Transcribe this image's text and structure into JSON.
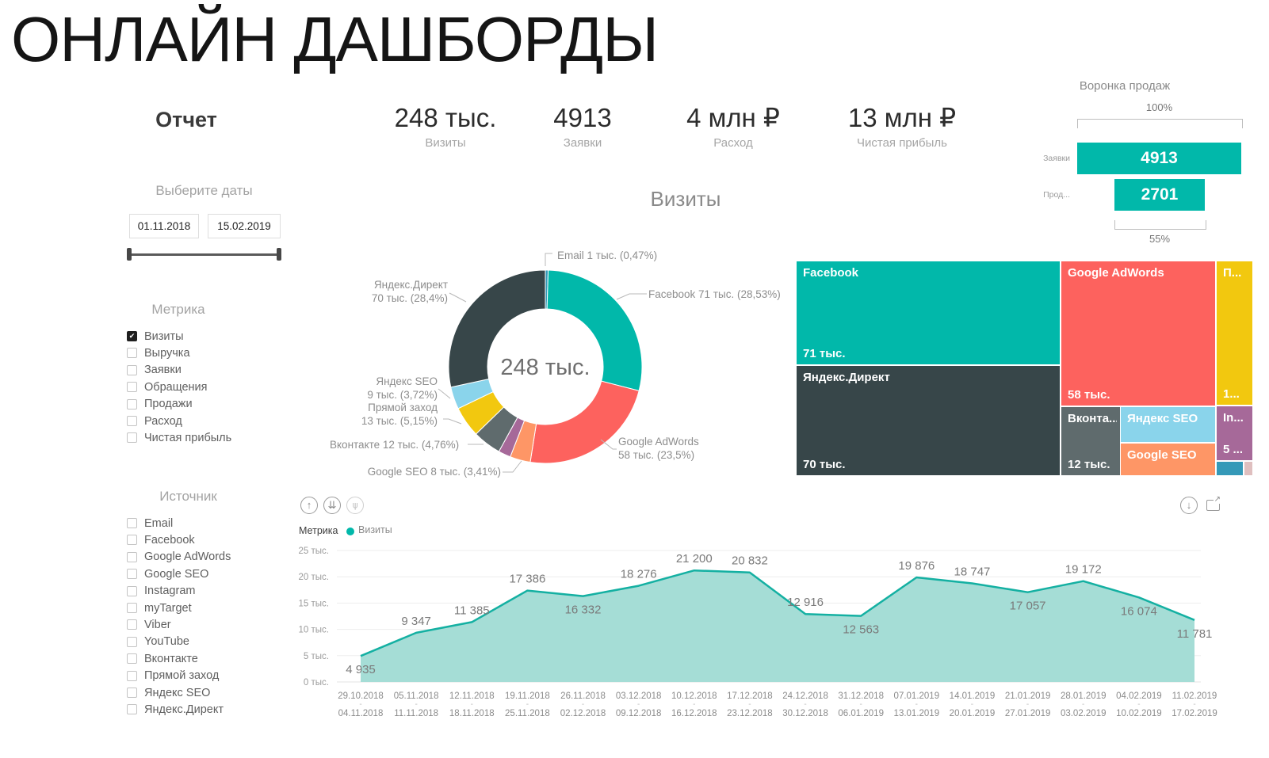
{
  "title": "ОНЛАЙН ДАШБОРДЫ",
  "report": {
    "title": "Отчет"
  },
  "kpis": [
    {
      "value": "248 тыс.",
      "label": "Визиты"
    },
    {
      "value": "4913",
      "label": "Заявки"
    },
    {
      "value": "4 млн ₽",
      "label": "Расход"
    },
    {
      "value": "13 млн ₽",
      "label": "Чистая прибыль"
    }
  ],
  "filters": {
    "dates": {
      "label": "Выберите даты",
      "start": "01.11.2018",
      "end": "15.02.2019"
    },
    "metrics": {
      "label": "Метрика",
      "items": [
        {
          "label": "Визиты",
          "checked": true
        },
        {
          "label": "Выручка",
          "checked": false
        },
        {
          "label": "Заявки",
          "checked": false
        },
        {
          "label": "Обращения",
          "checked": false
        },
        {
          "label": "Продажи",
          "checked": false
        },
        {
          "label": "Расход",
          "checked": false
        },
        {
          "label": "Чистая прибыль",
          "checked": false
        }
      ]
    },
    "sources": {
      "label": "Источник",
      "items": [
        {
          "label": "Email",
          "checked": false
        },
        {
          "label": "Facebook",
          "checked": false
        },
        {
          "label": "Google AdWords",
          "checked": false
        },
        {
          "label": "Google SEO",
          "checked": false
        },
        {
          "label": "Instagram",
          "checked": false
        },
        {
          "label": "myTarget",
          "checked": false
        },
        {
          "label": "Viber",
          "checked": false
        },
        {
          "label": "YouTube",
          "checked": false
        },
        {
          "label": "Вконтакте",
          "checked": false
        },
        {
          "label": "Прямой заход",
          "checked": false
        },
        {
          "label": "Яндекс SEO",
          "checked": false
        },
        {
          "label": "Яндекс.Директ",
          "checked": false
        }
      ]
    }
  },
  "funnel": {
    "title": "Воронка продаж",
    "top_label": "100%",
    "bottom_label": "55%",
    "stages": [
      {
        "label": "Заявки",
        "value": "4913"
      },
      {
        "label": "Прод...",
        "value": "2701"
      }
    ]
  },
  "line_header": {
    "legend_title": "Метрика",
    "series": "Визиты"
  },
  "icons": {
    "drill_up": "↑",
    "drill_down_double": "⇊",
    "expand_all": "⋔",
    "drill_down": "↓",
    "focus": "↗",
    "check": "✔",
    "axis_dash": "-"
  },
  "colors": {
    "accent": "#01B8AA",
    "dark": "#374649",
    "red": "#FD625E",
    "yellow": "#F2C80F",
    "gray": "#5F6B6D",
    "lightblue": "#8AD4EB",
    "orange": "#FE9666",
    "purple": "#A66999",
    "blue": "#3599B8",
    "pink": "#DFBFBF"
  },
  "chart_data": [
    {
      "id": "sales-funnel",
      "type": "bar",
      "title": "Воронка продаж",
      "categories": [
        "Заявки",
        "Прод..."
      ],
      "values": [
        4913,
        2701
      ],
      "annotations": [
        "100%",
        "55%"
      ],
      "legend_position": "none"
    },
    {
      "id": "visits-donut",
      "type": "pie",
      "title": "Визиты",
      "center_label": "248 тыс.",
      "slices": [
        {
          "label": "Email",
          "percent": 0.47,
          "color": "#3599B8",
          "callout": [
            "Email 1 тыс. (0,47%)"
          ]
        },
        {
          "label": "Facebook",
          "percent": 28.53,
          "color": "#01B8AA",
          "callout": [
            "Facebook 71 тыс. (28,53%)"
          ]
        },
        {
          "label": "Google AdWords",
          "percent": 23.5,
          "color": "#FD625E",
          "callout": [
            "Google AdWords",
            "58 тыс. (23,5%)"
          ]
        },
        {
          "label": "Google SEO",
          "percent": 3.41,
          "color": "#FE9666",
          "callout": [
            "Google SEO 8 тыс. (3,41%)"
          ]
        },
        {
          "label": "Instagram",
          "percent": 2.06,
          "color": "#A66999",
          "callout": []
        },
        {
          "label": "Вконтакте",
          "percent": 4.76,
          "color": "#5F6B6D",
          "callout": [
            "Вконтакте 12 тыс. (4,76%)"
          ]
        },
        {
          "label": "Прямой заход",
          "percent": 5.15,
          "color": "#F2C80F",
          "callout": [
            "Прямой заход",
            "13 тыс. (5,15%)"
          ]
        },
        {
          "label": "Яндекс SEO",
          "percent": 3.72,
          "color": "#8AD4EB",
          "callout": [
            "Яндекс SEO",
            "9 тыс. (3,72%)"
          ]
        },
        {
          "label": "Яндекс.Директ",
          "percent": 28.4,
          "color": "#374649",
          "callout": [
            "Яндекс.Директ",
            "70 тыс. (28,4%)"
          ]
        }
      ]
    },
    {
      "id": "sources-treemap",
      "type": "heatmap",
      "subtype": "treemap",
      "cells": [
        {
          "label": "Facebook",
          "value": "71 тыс.",
          "color": "#01B8AA"
        },
        {
          "label": "Яндекс.Директ",
          "value": "70 тыс.",
          "color": "#374649"
        },
        {
          "label": "Google AdWords",
          "value": "58 тыс.",
          "color": "#FD625E"
        },
        {
          "label": "Вконта...",
          "value": "12 тыс.",
          "color": "#5F6B6D"
        },
        {
          "label": "Яндекс SEO",
          "value": "",
          "color": "#8AD4EB"
        },
        {
          "label": "Google SEO",
          "value": "",
          "color": "#FE9666"
        },
        {
          "label": "П...",
          "value": "1...",
          "color": "#F2C80F"
        },
        {
          "label": "In...",
          "value": "5 ...",
          "color": "#A66999"
        },
        {
          "label": "",
          "value": "",
          "color": "#3599B8"
        },
        {
          "label": "",
          "value": "",
          "color": "#DFBFBF"
        }
      ]
    },
    {
      "id": "visits-weekly",
      "type": "area",
      "legend": "Визиты",
      "ylabel": "",
      "ylim": [
        0,
        25000
      ],
      "grid": true,
      "y_ticks": [
        "0 тыс.",
        "5 тыс.",
        "10 тыс.",
        "15 тыс.",
        "20 тыс.",
        "25 тыс."
      ],
      "weeks": [
        {
          "start": "29.10.2018",
          "end": "04.11.2018"
        },
        {
          "start": "05.11.2018",
          "end": "11.11.2018"
        },
        {
          "start": "12.11.2018",
          "end": "18.11.2018"
        },
        {
          "start": "19.11.2018",
          "end": "25.11.2018"
        },
        {
          "start": "26.11.2018",
          "end": "02.12.2018"
        },
        {
          "start": "03.12.2018",
          "end": "09.12.2018"
        },
        {
          "start": "10.12.2018",
          "end": "16.12.2018"
        },
        {
          "start": "17.12.2018",
          "end": "23.12.2018"
        },
        {
          "start": "24.12.2018",
          "end": "30.12.2018"
        },
        {
          "start": "31.12.2018",
          "end": "06.01.2019"
        },
        {
          "start": "07.01.2019",
          "end": "13.01.2019"
        },
        {
          "start": "14.01.2019",
          "end": "20.01.2019"
        },
        {
          "start": "21.01.2019",
          "end": "27.01.2019"
        },
        {
          "start": "28.01.2019",
          "end": "03.02.2019"
        },
        {
          "start": "04.02.2019",
          "end": "10.02.2019"
        },
        {
          "start": "11.02.2019",
          "end": "17.02.2019"
        }
      ],
      "values": [
        4935,
        9347,
        11385,
        17386,
        16332,
        18276,
        21200,
        20832,
        12916,
        12563,
        19876,
        18747,
        17057,
        19172,
        16074,
        11781
      ],
      "labels": [
        "4 935",
        "9 347",
        "11 385",
        "17 386",
        "16 332",
        "18 276",
        "21 200",
        "20 832",
        "12 916",
        "12 563",
        "19 876",
        "18 747",
        "17 057",
        "19 172",
        "16 074",
        "11 781"
      ]
    }
  ]
}
